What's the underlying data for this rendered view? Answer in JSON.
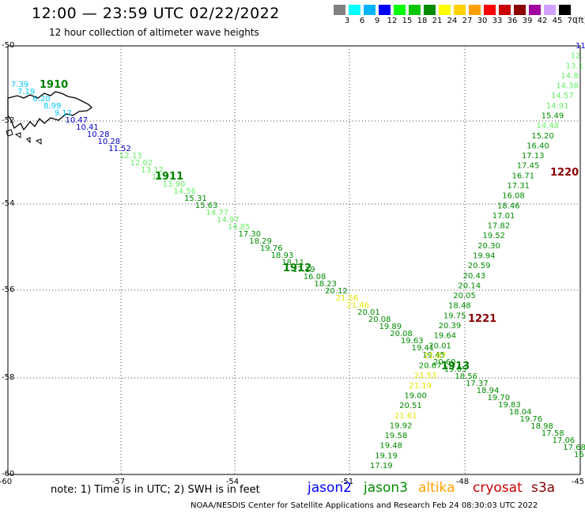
{
  "header": {
    "title": "12:00 — 23:59 UTC 02/22/2022",
    "subtitle": "12 hour collection of altimeter wave heights"
  },
  "colorbar": {
    "unit": "(ft)",
    "bins": [
      {
        "label": "3",
        "color": "#808080"
      },
      {
        "label": "6",
        "color": "#00ffff"
      },
      {
        "label": "9",
        "color": "#00b4ff"
      },
      {
        "label": "12",
        "color": "#0000ff"
      },
      {
        "label": "15",
        "color": "#00ff00"
      },
      {
        "label": "18",
        "color": "#00c800"
      },
      {
        "label": "21",
        "color": "#008c00"
      },
      {
        "label": "24",
        "color": "#ffff00"
      },
      {
        "label": "27",
        "color": "#ffd200"
      },
      {
        "label": "30",
        "color": "#ffa000"
      },
      {
        "label": "33",
        "color": "#ff0000"
      },
      {
        "label": "36",
        "color": "#c80000"
      },
      {
        "label": "39",
        "color": "#8c0000"
      },
      {
        "label": "42",
        "color": "#a000a0"
      },
      {
        "label": "45",
        "color": "#d2a0ff"
      },
      {
        "label": "70",
        "color": "#000000"
      }
    ]
  },
  "axes": {
    "x_ticks": [
      "-60",
      "-57",
      "-54",
      "-51",
      "-48",
      "-45"
    ],
    "y_ticks": [
      "-50",
      "-52",
      "-54",
      "-56",
      "-58",
      "-60"
    ]
  },
  "passes": [
    {
      "id": "1910",
      "color": "#008000"
    },
    {
      "id": "1911",
      "color": "#008000"
    },
    {
      "id": "1912",
      "color": "#008000"
    },
    {
      "id": "1913",
      "color": "#008000"
    },
    {
      "id": "1220",
      "color": "#8b0000"
    },
    {
      "id": "1221",
      "color": "#8b0000"
    }
  ],
  "track_a": [
    {
      "v": "7.39",
      "c": "#00c8ff"
    },
    {
      "v": "7.19",
      "c": "#00c8ff"
    },
    {
      "v": "6.20",
      "c": "#00c8ff"
    },
    {
      "v": "8.99",
      "c": "#00c8ff"
    },
    {
      "v": "9.12",
      "c": "#00c8ff"
    },
    {
      "v": "10.47",
      "c": "#0000cc"
    },
    {
      "v": "10.41",
      "c": "#0000cc"
    },
    {
      "v": "10.28",
      "c": "#0000cc"
    },
    {
      "v": "10.28",
      "c": "#0000cc"
    },
    {
      "v": "11.52",
      "c": "#0000cc"
    },
    {
      "v": "12.13",
      "c": "#66ee66"
    },
    {
      "v": "12.02",
      "c": "#66ee66"
    },
    {
      "v": "13.12",
      "c": "#66ee66"
    },
    {
      "v": "14.13",
      "c": "#66ee66"
    },
    {
      "v": "13.90",
      "c": "#66ee66"
    },
    {
      "v": "14.56",
      "c": "#66ee66"
    },
    {
      "v": "15.31",
      "c": "#008c00"
    },
    {
      "v": "15.63",
      "c": "#008c00"
    },
    {
      "v": "14.77",
      "c": "#66ee66"
    },
    {
      "v": "14.97",
      "c": "#66ee66"
    },
    {
      "v": "14.85",
      "c": "#66ee66"
    },
    {
      "v": "17.30",
      "c": "#008c00"
    },
    {
      "v": "18.29",
      "c": "#008c00"
    },
    {
      "v": "19.76",
      "c": "#008c00"
    },
    {
      "v": "18.93",
      "c": "#008c00"
    },
    {
      "v": "18.11",
      "c": "#008c00"
    },
    {
      "v": "17.19",
      "c": "#008c00"
    },
    {
      "v": "16.08",
      "c": "#008c00"
    },
    {
      "v": "18.23",
      "c": "#008c00"
    },
    {
      "v": "20.12",
      "c": "#008c00"
    },
    {
      "v": "21.56",
      "c": "#e6e600"
    },
    {
      "v": "21.46",
      "c": "#e6e600"
    },
    {
      "v": "20.01",
      "c": "#008c00"
    },
    {
      "v": "20.08",
      "c": "#008c00"
    },
    {
      "v": "19.89",
      "c": "#008c00"
    },
    {
      "v": "20.08",
      "c": "#008c00"
    },
    {
      "v": "19.63",
      "c": "#008c00"
    },
    {
      "v": "19.41",
      "c": "#008c00"
    },
    {
      "v": "19.45",
      "c": "#008c00"
    },
    {
      "v": "20.60",
      "c": "#008c00"
    },
    {
      "v": "19.05",
      "c": "#008c00"
    },
    {
      "v": "18.56",
      "c": "#008c00"
    },
    {
      "v": "17.37",
      "c": "#008c00"
    },
    {
      "v": "18.94",
      "c": "#008c00"
    },
    {
      "v": "19.70",
      "c": "#008c00"
    },
    {
      "v": "19.83",
      "c": "#008c00"
    },
    {
      "v": "18.04",
      "c": "#008c00"
    },
    {
      "v": "19.76",
      "c": "#008c00"
    },
    {
      "v": "18.98",
      "c": "#008c00"
    },
    {
      "v": "17.58",
      "c": "#008c00"
    },
    {
      "v": "17.06",
      "c": "#008c00"
    },
    {
      "v": "17.68",
      "c": "#008c00"
    },
    {
      "v": "16",
      "c": "#008c00"
    }
  ],
  "track_b": [
    {
      "v": "11",
      "c": "#0000cc"
    },
    {
      "v": "12.",
      "c": "#66ee66"
    },
    {
      "v": "13.1",
      "c": "#66ee66"
    },
    {
      "v": "14.8",
      "c": "#66ee66"
    },
    {
      "v": "14.38",
      "c": "#66ee66"
    },
    {
      "v": "14.57",
      "c": "#66ee66"
    },
    {
      "v": "14.91",
      "c": "#66ee66"
    },
    {
      "v": "15.49",
      "c": "#008c00"
    },
    {
      "v": "14.48",
      "c": "#66ee66"
    },
    {
      "v": "15.20",
      "c": "#008c00"
    },
    {
      "v": "16.40",
      "c": "#008c00"
    },
    {
      "v": "17.13",
      "c": "#008c00"
    },
    {
      "v": "17.45",
      "c": "#008c00"
    },
    {
      "v": "16.71",
      "c": "#008c00"
    },
    {
      "v": "17.31",
      "c": "#008c00"
    },
    {
      "v": "16.08",
      "c": "#008c00"
    },
    {
      "v": "18.46",
      "c": "#008c00"
    },
    {
      "v": "17.01",
      "c": "#008c00"
    },
    {
      "v": "17.82",
      "c": "#008c00"
    },
    {
      "v": "19.52",
      "c": "#008c00"
    },
    {
      "v": "20.30",
      "c": "#008c00"
    },
    {
      "v": "19.94",
      "c": "#008c00"
    },
    {
      "v": "20.59",
      "c": "#008c00"
    },
    {
      "v": "20.43",
      "c": "#008c00"
    },
    {
      "v": "20.14",
      "c": "#008c00"
    },
    {
      "v": "20.05",
      "c": "#008c00"
    },
    {
      "v": "18.48",
      "c": "#008c00"
    },
    {
      "v": "19.75",
      "c": "#008c00"
    },
    {
      "v": "20.39",
      "c": "#008c00"
    },
    {
      "v": "19.64",
      "c": "#008c00"
    },
    {
      "v": "20.01",
      "c": "#008c00"
    },
    {
      "v": "21.87",
      "c": "#e6e600"
    },
    {
      "v": "20.67",
      "c": "#008c00"
    },
    {
      "v": "21.53",
      "c": "#e6e600"
    },
    {
      "v": "21.19",
      "c": "#e6e600"
    },
    {
      "v": "19.00",
      "c": "#008c00"
    },
    {
      "v": "20.51",
      "c": "#008c00"
    },
    {
      "v": "21.61",
      "c": "#e6e600"
    },
    {
      "v": "19.92",
      "c": "#008c00"
    },
    {
      "v": "19.58",
      "c": "#008c00"
    },
    {
      "v": "19.48",
      "c": "#008c00"
    },
    {
      "v": "19.19",
      "c": "#008c00"
    },
    {
      "v": "17.19",
      "c": "#008c00"
    }
  ],
  "footer": {
    "note": "note: 1) Time is in UTC; 2) SWH is in feet",
    "satellites": [
      {
        "name": "jason2",
        "color": "#0000ff"
      },
      {
        "name": "jason3",
        "color": "#008c00"
      },
      {
        "name": "altika",
        "color": "#ffa000"
      },
      {
        "name": "cryosat",
        "color": "#cc0000"
      },
      {
        "name": "s3a",
        "color": "#8b0000"
      }
    ],
    "credit": "NOAA/NESDIS Center for Satellite Applications and Research    Feb 24 08:30:03 UTC 2022"
  }
}
